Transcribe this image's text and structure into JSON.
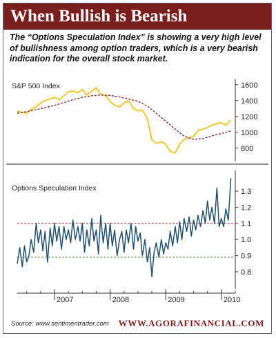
{
  "header": {
    "title": "When Bullish is Bearish",
    "subtitle": "The “Options Speculation Index” is showing a very high level of bullishness among option traders, which is a very bearish indication for the overall stock market."
  },
  "footer": {
    "source": "Source: www.sentimentrader.com",
    "brand": "WWW.AGORAFINANCIAL.COM"
  },
  "colors": {
    "banner": "#7a1d1d",
    "sp500_line": "#f2c216",
    "moving_average": "#7a1d2a",
    "osi_line": "#1f4e6e",
    "upper_reference": "#a0282a",
    "lower_reference": "#4d8a3a"
  },
  "chart_data": [
    {
      "type": "line",
      "title": "S&P 500 Index",
      "ylim": [
        650,
        1650
      ],
      "yticks": [
        800,
        1000,
        1200,
        1400,
        1600
      ],
      "xlim": [
        2006.33,
        2010.25
      ],
      "xticks": [
        2007,
        2008,
        2009,
        2010
      ],
      "series": [
        {
          "key": "price",
          "x": [
            2006.33,
            2006.42,
            2006.5,
            2006.58,
            2006.67,
            2006.75,
            2006.83,
            2006.92,
            2007.0,
            2007.08,
            2007.17,
            2007.25,
            2007.33,
            2007.42,
            2007.5,
            2007.58,
            2007.67,
            2007.75,
            2007.83,
            2007.92,
            2008.0,
            2008.08,
            2008.17,
            2008.25,
            2008.33,
            2008.42,
            2008.5,
            2008.58,
            2008.67,
            2008.75,
            2008.83,
            2008.92,
            2009.0,
            2009.08,
            2009.17,
            2009.25,
            2009.33,
            2009.42,
            2009.5,
            2009.58,
            2009.67,
            2009.75,
            2009.83,
            2009.92,
            2010.0,
            2010.08,
            2010.17
          ],
          "values": [
            1270,
            1250,
            1240,
            1290,
            1320,
            1370,
            1400,
            1420,
            1440,
            1410,
            1460,
            1510,
            1520,
            1500,
            1540,
            1470,
            1520,
            1560,
            1480,
            1460,
            1390,
            1340,
            1320,
            1370,
            1400,
            1300,
            1270,
            1280,
            1170,
            900,
            860,
            880,
            850,
            760,
            740,
            850,
            910,
            930,
            950,
            1020,
            1040,
            1060,
            1090,
            1110,
            1120,
            1090,
            1150
          ]
        },
        {
          "key": "moving_average",
          "x": [
            2006.33,
            2006.5,
            2006.67,
            2006.83,
            2007.0,
            2007.17,
            2007.33,
            2007.5,
            2007.67,
            2007.83,
            2008.0,
            2008.17,
            2008.33,
            2008.5,
            2008.67,
            2008.83,
            2009.0,
            2009.17,
            2009.33,
            2009.5,
            2009.67,
            2009.83,
            2010.0,
            2010.17
          ],
          "values": [
            1240,
            1260,
            1285,
            1310,
            1340,
            1375,
            1410,
            1440,
            1460,
            1470,
            1465,
            1445,
            1420,
            1390,
            1330,
            1240,
            1140,
            1040,
            950,
            910,
            920,
            955,
            985,
            1015
          ]
        }
      ]
    },
    {
      "type": "line",
      "title": "Options Speculation Index",
      "ylim": [
        0.71,
        1.42
      ],
      "yticks": [
        0.8,
        0.9,
        1.0,
        1.1,
        1.2,
        1.3
      ],
      "reference_lines": [
        1.1,
        0.89
      ],
      "xlim": [
        2006.33,
        2010.25
      ],
      "xticks": [
        2007,
        2008,
        2009,
        2010
      ],
      "xticklabels": [
        "2007",
        "2008",
        "2009",
        "2010"
      ],
      "series": [
        {
          "key": "osi",
          "x": [
            2006.33,
            2006.375,
            2006.42,
            2006.46,
            2006.5,
            2006.54,
            2006.58,
            2006.625,
            2006.67,
            2006.71,
            2006.75,
            2006.79,
            2006.83,
            2006.875,
            2006.92,
            2006.96,
            2007.0,
            2007.04,
            2007.08,
            2007.125,
            2007.17,
            2007.21,
            2007.25,
            2007.29,
            2007.33,
            2007.375,
            2007.42,
            2007.46,
            2007.5,
            2007.54,
            2007.58,
            2007.625,
            2007.67,
            2007.71,
            2007.75,
            2007.79,
            2007.83,
            2007.875,
            2007.92,
            2007.96,
            2008.0,
            2008.04,
            2008.08,
            2008.125,
            2008.17,
            2008.21,
            2008.25,
            2008.29,
            2008.33,
            2008.375,
            2008.42,
            2008.46,
            2008.5,
            2008.54,
            2008.58,
            2008.625,
            2008.67,
            2008.71,
            2008.75,
            2008.79,
            2008.83,
            2008.875,
            2008.92,
            2008.96,
            2009.0,
            2009.04,
            2009.08,
            2009.125,
            2009.17,
            2009.21,
            2009.25,
            2009.29,
            2009.33,
            2009.375,
            2009.42,
            2009.46,
            2009.5,
            2009.54,
            2009.58,
            2009.625,
            2009.67,
            2009.71,
            2009.75,
            2009.79,
            2009.83,
            2009.875,
            2009.92,
            2009.96,
            2010.0,
            2010.04,
            2010.08,
            2010.125,
            2010.17
          ],
          "values": [
            0.85,
            0.95,
            0.83,
            0.96,
            0.86,
            0.9,
            1.0,
            0.92,
            1.1,
            0.98,
            1.06,
            0.93,
            1.05,
            0.86,
            1.07,
            0.96,
            1.1,
            0.99,
            1.08,
            0.94,
            1.08,
            1.0,
            1.06,
            0.98,
            1.12,
            1.0,
            1.08,
            0.99,
            1.1,
            0.92,
            1.06,
            0.96,
            1.13,
            0.99,
            1.06,
            0.91,
            1.15,
            0.98,
            1.1,
            0.94,
            1.1,
            0.96,
            1.06,
            0.9,
            1.0,
            1.05,
            0.92,
            1.06,
            0.98,
            1.1,
            0.94,
            1.08,
            0.99,
            1.04,
            0.9,
            1.0,
            0.86,
            0.95,
            0.77,
            0.92,
            0.98,
            0.89,
            1.0,
            0.91,
            0.98,
            0.94,
            1.05,
            0.96,
            1.08,
            0.98,
            1.11,
            1.0,
            1.13,
            1.05,
            1.14,
            1.02,
            1.12,
            1.06,
            1.15,
            1.08,
            1.18,
            1.1,
            1.24,
            1.12,
            1.2,
            1.1,
            1.32,
            1.08,
            1.13,
            1.08,
            1.19,
            1.12,
            1.38
          ]
        }
      ]
    }
  ]
}
